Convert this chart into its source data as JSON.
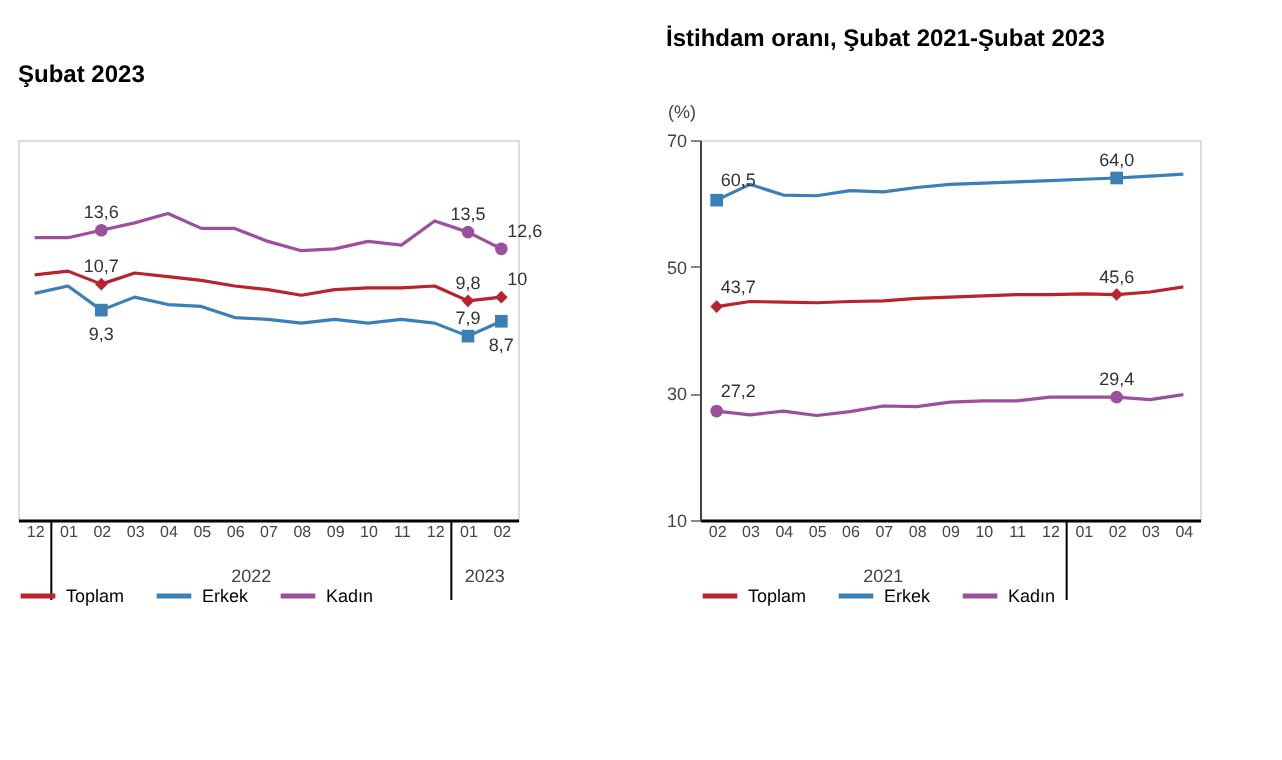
{
  "chart_data": [
    {
      "type": "line",
      "title": "Şubat 2023",
      "tick_labels": "x",
      "legend": "bottom",
      "grid": false,
      "categories": [
        "12",
        "01",
        "02",
        "03",
        "04",
        "05",
        "06",
        "07",
        "08",
        "09",
        "10",
        "11",
        "12",
        "01",
        "02"
      ],
      "annotations": [
        "2022",
        "2023"
      ],
      "series": [
        {
          "name": "Toplam",
          "color": "#b8232d",
          "values": [
            11.2,
            11.4,
            10.7,
            11.3,
            11.1,
            10.9,
            10.6,
            10.4,
            10.1,
            10.4,
            10.5,
            10.5,
            10.6,
            9.8,
            10.0
          ],
          "value_labels": [
            null,
            null,
            "10,7",
            null,
            null,
            null,
            null,
            null,
            null,
            null,
            null,
            null,
            null,
            "9,8",
            "10"
          ]
        },
        {
          "name": "Erkek",
          "color": "#3a7fb5",
          "values": [
            10.2,
            10.6,
            9.3,
            10.0,
            9.6,
            9.5,
            8.9,
            8.8,
            8.6,
            8.8,
            8.6,
            8.8,
            8.6,
            7.9,
            8.7
          ],
          "value_labels": [
            null,
            null,
            "9,3",
            null,
            null,
            null,
            null,
            null,
            null,
            null,
            null,
            null,
            null,
            "7,9",
            "8,7"
          ]
        },
        {
          "name": "Kadın",
          "color": "#9c4f9c",
          "values": [
            13.2,
            13.2,
            13.6,
            14.0,
            14.5,
            13.7,
            13.7,
            13.0,
            12.5,
            12.6,
            13.0,
            12.8,
            14.1,
            13.5,
            12.6
          ],
          "value_labels": [
            null,
            null,
            "13,6",
            null,
            null,
            null,
            null,
            null,
            null,
            null,
            null,
            null,
            null,
            "13,5",
            "12,6"
          ]
        }
      ]
    },
    {
      "type": "line",
      "title": "İstihdam oranı, Şubat 2021-Şubat 2023",
      "ylabel": "(%)",
      "legend": "bottom",
      "grid": false,
      "categories": [
        "02",
        "03",
        "04",
        "05",
        "06",
        "07",
        "08",
        "09",
        "10",
        "11",
        "12",
        "01",
        "02",
        "03",
        "04"
      ],
      "ylim": [
        10,
        70
      ],
      "yticks": [
        10,
        30,
        50,
        70
      ],
      "annotations": [
        "2021"
      ],
      "series": [
        {
          "name": "Toplam",
          "color": "#b8232d",
          "values": [
            43.7,
            44.5,
            44.4,
            44.3,
            44.5,
            44.6,
            45.0,
            45.2,
            45.4,
            45.6,
            45.6,
            45.7,
            45.6,
            46.0,
            46.8
          ],
          "value_labels": [
            "43,7",
            null,
            null,
            null,
            null,
            null,
            null,
            null,
            null,
            null,
            null,
            null,
            "45,6",
            null,
            null
          ]
        },
        {
          "name": "Erkek",
          "color": "#3a7fb5",
          "values": [
            60.5,
            63.0,
            61.3,
            61.2,
            62.0,
            61.8,
            62.5,
            63.0,
            63.2,
            63.4,
            63.6,
            63.8,
            64.0,
            64.3,
            64.6
          ],
          "value_labels": [
            "60,5",
            null,
            null,
            null,
            null,
            null,
            null,
            null,
            null,
            null,
            null,
            null,
            "64,0",
            null,
            null
          ]
        },
        {
          "name": "Kadın",
          "color": "#9c4f9c",
          "values": [
            27.2,
            26.6,
            27.2,
            26.5,
            27.1,
            28.0,
            27.9,
            28.6,
            28.8,
            28.8,
            29.4,
            29.4,
            29.4,
            29.0,
            29.8
          ],
          "value_labels": [
            "27,2",
            null,
            null,
            null,
            null,
            null,
            null,
            null,
            null,
            null,
            null,
            null,
            "29,4",
            null,
            null
          ]
        }
      ]
    }
  ]
}
